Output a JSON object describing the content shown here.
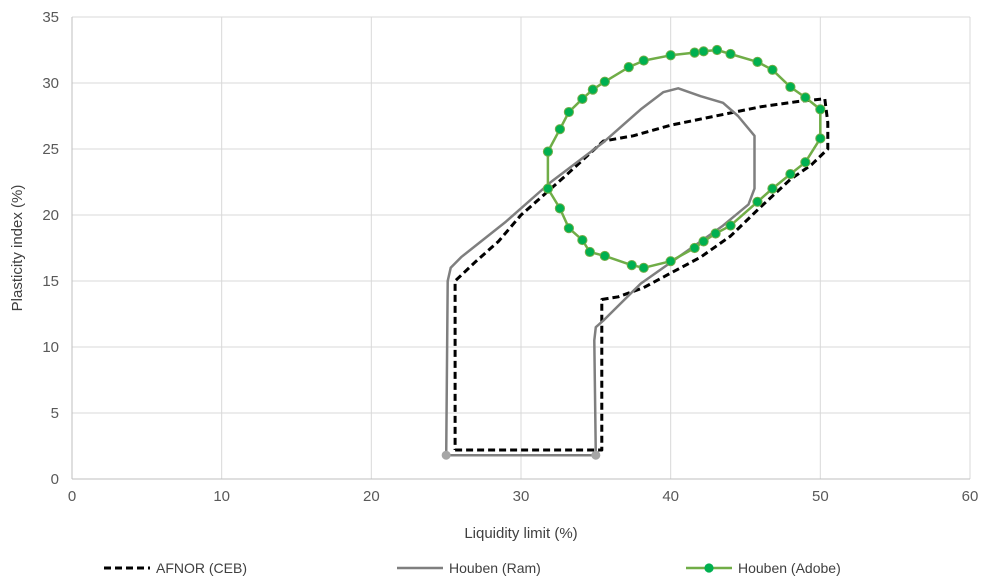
{
  "chart_data": {
    "type": "scatter",
    "title": "",
    "xlabel": "Liquidity limit (%)",
    "ylabel": "Plasticity index (%)",
    "xlim": [
      0,
      60
    ],
    "ylim": [
      0,
      35
    ],
    "xticks": [
      0,
      10,
      20,
      30,
      40,
      50,
      60
    ],
    "yticks": [
      0,
      5,
      10,
      15,
      20,
      25,
      30,
      35
    ],
    "grid": true,
    "legend_position": "bottom",
    "series": [
      {
        "name": "AFNOR (CEB)",
        "color": "#000000",
        "line_style": "dashed",
        "markers": false,
        "points": [
          [
            25.6,
            2.2
          ],
          [
            35.4,
            2.2
          ],
          [
            35.4,
            13.6
          ],
          [
            36.5,
            13.8
          ],
          [
            38.2,
            14.5
          ],
          [
            40.0,
            15.6
          ],
          [
            42.0,
            16.8
          ],
          [
            44.0,
            18.4
          ],
          [
            46.0,
            20.6
          ],
          [
            48.0,
            22.7
          ],
          [
            49.4,
            23.8
          ],
          [
            50.5,
            25.0
          ],
          [
            50.5,
            27.0
          ],
          [
            50.3,
            28.8
          ],
          [
            48.5,
            28.6
          ],
          [
            46.0,
            28.2
          ],
          [
            43.0,
            27.5
          ],
          [
            40.0,
            26.8
          ],
          [
            37.5,
            26.0
          ],
          [
            35.5,
            25.6
          ],
          [
            33.0,
            23.0
          ],
          [
            31.5,
            21.5
          ],
          [
            30.0,
            20.0
          ],
          [
            28.5,
            18.0
          ],
          [
            27.0,
            16.5
          ],
          [
            25.6,
            15.0
          ],
          [
            25.6,
            2.2
          ]
        ]
      },
      {
        "name": "Houben (Ram)",
        "color": "#7f7f7f",
        "line_style": "solid",
        "markers": false,
        "endpoint_markers": [
          [
            25.0,
            1.8
          ],
          [
            35.0,
            1.8
          ]
        ],
        "points": [
          [
            25.0,
            1.8
          ],
          [
            35.0,
            1.8
          ],
          [
            34.9,
            10.5
          ],
          [
            35.0,
            11.5
          ],
          [
            35.5,
            12.0
          ],
          [
            38.0,
            14.8
          ],
          [
            41.0,
            17.2
          ],
          [
            43.5,
            19.2
          ],
          [
            45.2,
            20.8
          ],
          [
            45.6,
            22.0
          ],
          [
            45.6,
            26.0
          ],
          [
            44.5,
            27.5
          ],
          [
            43.5,
            28.5
          ],
          [
            42.0,
            29.0
          ],
          [
            40.5,
            29.6
          ],
          [
            39.5,
            29.3
          ],
          [
            38.0,
            28.0
          ],
          [
            35.5,
            25.5
          ],
          [
            32.0,
            22.5
          ],
          [
            29.0,
            19.5
          ],
          [
            26.0,
            16.8
          ],
          [
            25.3,
            16.0
          ],
          [
            25.1,
            15.0
          ],
          [
            25.0,
            1.8
          ]
        ]
      },
      {
        "name": "Houben (Adobe)",
        "color": "#70ad47",
        "marker_color": "#00b050",
        "line_style": "solid",
        "markers": true,
        "points": [
          [
            50.0,
            28.0
          ],
          [
            50.0,
            25.8
          ],
          [
            49.0,
            24.0
          ],
          [
            48.0,
            23.1
          ],
          [
            46.8,
            22.0
          ],
          [
            45.8,
            21.0
          ],
          [
            44.0,
            19.2
          ],
          [
            43.0,
            18.6
          ],
          [
            42.2,
            18.0
          ],
          [
            41.6,
            17.5
          ],
          [
            40.0,
            16.5
          ],
          [
            38.2,
            16.0
          ],
          [
            37.4,
            16.2
          ],
          [
            35.6,
            16.9
          ],
          [
            34.6,
            17.2
          ],
          [
            34.1,
            18.1
          ],
          [
            33.2,
            19.0
          ],
          [
            32.6,
            20.5
          ],
          [
            31.8,
            22.0
          ],
          [
            31.8,
            24.8
          ],
          [
            32.6,
            26.5
          ],
          [
            33.2,
            27.8
          ],
          [
            34.1,
            28.8
          ],
          [
            34.8,
            29.5
          ],
          [
            35.6,
            30.1
          ],
          [
            37.2,
            31.2
          ],
          [
            38.2,
            31.7
          ],
          [
            40.0,
            32.1
          ],
          [
            41.6,
            32.3
          ],
          [
            42.2,
            32.4
          ],
          [
            43.1,
            32.5
          ],
          [
            44.0,
            32.2
          ],
          [
            45.8,
            31.6
          ],
          [
            46.8,
            31.0
          ],
          [
            48.0,
            29.7
          ],
          [
            49.0,
            28.9
          ],
          [
            50.0,
            28.0
          ]
        ]
      }
    ]
  }
}
